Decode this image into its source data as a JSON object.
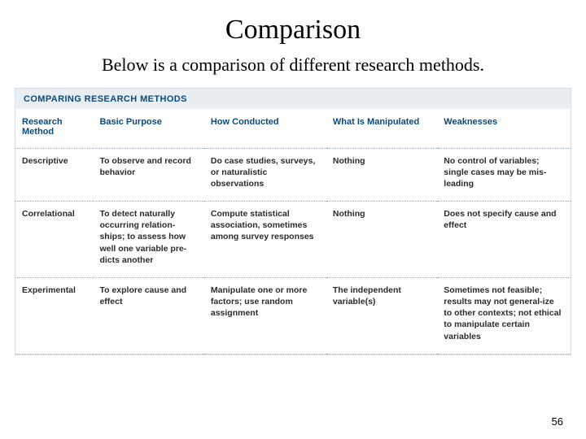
{
  "slide": {
    "title": "Comparison",
    "subtitle": "Below is a comparison of different research methods.",
    "page_number": "56"
  },
  "table": {
    "banner": "COMPARING RESEARCH METHODS",
    "banner_bg": "#e9eef2",
    "banner_color": "#0a4a7a",
    "border_color": "#d9dfe3",
    "divider_color": "#9aaab5",
    "header_color": "#0a4a7a",
    "body_color": "#2b2b2b",
    "font_family": "Arial, Helvetica, sans-serif",
    "header_fontsize": 11,
    "body_fontsize": 10.5,
    "columns": [
      {
        "label": "Research Method",
        "width": "14%"
      },
      {
        "label": "Basic Purpose",
        "width": "20%"
      },
      {
        "label": "How Conducted",
        "width": "22%"
      },
      {
        "label": "What Is Manipulated",
        "width": "20%"
      },
      {
        "label": "Weaknesses",
        "width": "24%"
      }
    ],
    "rows": [
      {
        "method": "Descriptive",
        "purpose": "To observe and record behavior",
        "conducted": "Do case studies, surveys, or naturalistic observations",
        "manipulated": "Nothing",
        "weaknesses": "No control of variables; single cases may be mis-leading"
      },
      {
        "method": "Correlational",
        "purpose": "To detect naturally occurring relation-ships; to assess how well one variable pre-dicts another",
        "conducted": "Compute statistical association, sometimes among survey responses",
        "manipulated": "Nothing",
        "weaknesses": "Does not specify cause and effect"
      },
      {
        "method": "Experimental",
        "purpose": "To explore cause and effect",
        "conducted": "Manipulate one or more factors; use random assignment",
        "manipulated": "The independent variable(s)",
        "weaknesses": "Sometimes not feasible; results may not general-ize to other contexts; not ethical to manipulate certain variables"
      }
    ]
  }
}
